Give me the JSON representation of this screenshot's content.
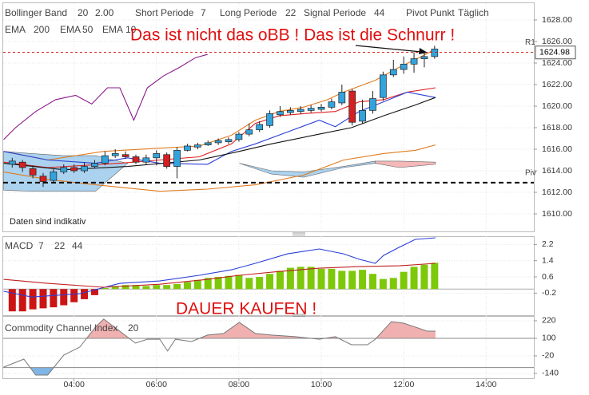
{
  "chart_data": [
    {
      "type": "candlestick",
      "legend": [
        {
          "label": "Bollinger Band",
          "params": [
            20,
            "2.00"
          ],
          "color": "#e08a1e"
        },
        {
          "label": "Short Periode",
          "params": [
            7
          ],
          "color": "#555555"
        },
        {
          "label": "Long Periode",
          "params": [
            22
          ],
          "color": "#555555"
        },
        {
          "label": "Signal Periode",
          "params": [
            44
          ],
          "color": "#555555"
        },
        {
          "label": "Pivot Punkt",
          "params": [
            "Täglich"
          ],
          "color": "#555555"
        },
        {
          "label": "EMA",
          "params": [
            200
          ],
          "color": "#8b1a8b"
        },
        {
          "label": "EMA",
          "params": [
            50
          ],
          "color": "#2a3fd6"
        },
        {
          "label": "EMA",
          "params": [
            10
          ],
          "color": "#222222"
        }
      ],
      "annotation": "Das ist nicht das oBB ! Das ist die Schnurr !",
      "note": "Daten sind indikativ",
      "x": [
        2.5,
        2.75,
        3,
        3.25,
        3.5,
        3.75,
        4,
        4.25,
        4.5,
        4.75,
        5,
        5.25,
        5.5,
        5.75,
        6,
        6.25,
        6.5,
        6.75,
        7,
        7.25,
        7.5,
        7.75,
        8,
        8.25,
        8.5,
        8.75,
        9,
        9.25,
        9.5,
        9.75,
        10,
        10.25,
        10.5,
        10.75,
        11,
        11.25,
        11.5,
        11.75,
        12,
        12.25,
        12.5,
        12.75
      ],
      "open": [
        1614.6,
        1614.8,
        1614.2,
        1613.5,
        1613.1,
        1613.9,
        1614.3,
        1614.0,
        1614.4,
        1614.7,
        1615.4,
        1615.5,
        1615.3,
        1614.8,
        1615.2,
        1615.5,
        1614.4,
        1615.9,
        1616.2,
        1616.4,
        1616.6,
        1616.7,
        1616.9,
        1617.4,
        1617.8,
        1618.2,
        1619.2,
        1619.4,
        1619.5,
        1619.6,
        1619.7,
        1619.9,
        1620.3,
        1621.4,
        1618.6,
        1619.6,
        1620.8,
        1622.9,
        1623.4,
        1623.9,
        1624.4,
        1624.6
      ],
      "high": [
        1615.2,
        1615.0,
        1614.5,
        1613.8,
        1614.2,
        1614.6,
        1614.6,
        1614.8,
        1615.0,
        1615.8,
        1616.0,
        1615.8,
        1615.5,
        1615.5,
        1615.9,
        1615.7,
        1616.2,
        1616.5,
        1616.6,
        1616.8,
        1617.0,
        1617.1,
        1617.6,
        1618.4,
        1618.6,
        1619.6,
        1620.0,
        1619.9,
        1620.0,
        1620.1,
        1620.2,
        1620.7,
        1622.0,
        1621.6,
        1620.6,
        1621.4,
        1623.2,
        1624.3,
        1624.6,
        1625.0,
        1625.1,
        1625.6
      ],
      "low": [
        1614.3,
        1613.9,
        1613.3,
        1612.5,
        1612.9,
        1613.7,
        1613.8,
        1613.8,
        1614.2,
        1614.5,
        1615.2,
        1615.1,
        1614.6,
        1614.6,
        1614.5,
        1614.2,
        1613.3,
        1615.8,
        1616.0,
        1616.3,
        1616.4,
        1616.5,
        1616.7,
        1617.2,
        1617.6,
        1618.0,
        1619.0,
        1619.2,
        1619.3,
        1619.4,
        1619.5,
        1619.7,
        1620.1,
        1618.2,
        1618.4,
        1619.3,
        1620.5,
        1622.7,
        1623.0,
        1623.1,
        1623.6,
        1624.4
      ],
      "close": [
        1614.9,
        1614.3,
        1613.6,
        1613.0,
        1613.9,
        1614.3,
        1614.0,
        1614.4,
        1614.7,
        1615.4,
        1615.6,
        1615.3,
        1614.8,
        1615.2,
        1615.6,
        1614.4,
        1615.9,
        1616.3,
        1616.4,
        1616.6,
        1616.8,
        1616.9,
        1617.4,
        1617.8,
        1618.3,
        1619.3,
        1619.5,
        1619.6,
        1619.7,
        1619.8,
        1619.9,
        1620.4,
        1621.3,
        1618.5,
        1619.6,
        1620.7,
        1622.9,
        1623.4,
        1623.9,
        1624.4,
        1624.6,
        1625.3
      ],
      "up_color": "#33a3dc",
      "down_color": "#d42020",
      "clouds": [
        {
          "color": "#8fc3e8",
          "x": [
            2.29,
            2.97,
            3.75,
            4.52,
            5.3
          ],
          "upper": [
            1615.8,
            1615.6,
            1615.4,
            1615.4,
            1614.7
          ],
          "lower": [
            1612.2,
            1612.1,
            1612.1,
            1612.1,
            1614.7
          ]
        },
        {
          "color": "#8fc3e8",
          "x": [
            8.01,
            8.79,
            9.57,
            10.54,
            11.31
          ],
          "upper": [
            1614.7,
            1614.0,
            1613.9,
            1614.4,
            1614.9
          ],
          "lower": [
            1614.7,
            1613.7,
            1613.4,
            1614.3,
            1614.7
          ]
        },
        {
          "color": "#f0a0a0",
          "x": [
            11.31,
            11.89,
            12.77
          ],
          "upper": [
            1614.9,
            1614.9,
            1614.8
          ],
          "lower": [
            1614.7,
            1614.3,
            1614.6
          ]
        }
      ],
      "lines": [
        {
          "color": "#8b1a8b",
          "x": [
            2.29,
            2.58,
            3.07,
            3.55,
            4.04,
            4.43,
            4.81,
            5.11,
            5.45,
            5.78,
            6.17,
            6.56,
            6.95,
            7.24
          ],
          "values": [
            1616.9,
            1618.0,
            1619.5,
            1620.6,
            1621.0,
            1620.2,
            1621.7,
            1621.7,
            1618.7,
            1621.7,
            1622.8,
            1623.6,
            1624.5,
            1624.8
          ]
        },
        {
          "color": "#e07b20",
          "x": [
            2.29,
            3.36,
            4.72,
            6.08,
            7.04,
            7.82,
            8.4,
            8.98,
            9.57,
            10.15,
            10.54,
            11.31,
            11.89,
            12.48,
            12.77
          ],
          "values": [
            1615.8,
            1615.0,
            1615.8,
            1616.1,
            1616.3,
            1617.3,
            1618.7,
            1619.5,
            1619.9,
            1620.6,
            1621.3,
            1622.4,
            1623.6,
            1624.7,
            1625.3
          ]
        },
        {
          "color": "#e07b20",
          "x": [
            2.29,
            3.36,
            4.52,
            6.08,
            7.24,
            8.4,
            9.57,
            10.54,
            11.51,
            12.28,
            12.77
          ],
          "values": [
            1613.9,
            1613.2,
            1612.7,
            1612.1,
            1612.3,
            1612.7,
            1613.6,
            1615.0,
            1615.6,
            1615.9,
            1616.4
          ]
        },
        {
          "color": "#e02020",
          "x": [
            2.29,
            3.36,
            5.11,
            6.08,
            7.04,
            7.82,
            8.4,
            8.98,
            9.57,
            10.34,
            10.92,
            11.51,
            12.09,
            12.77
          ],
          "values": [
            1614.8,
            1614.3,
            1614.7,
            1615.0,
            1615.3,
            1616.5,
            1618.4,
            1619.1,
            1619.3,
            1619.5,
            1620.4,
            1620.6,
            1621.3,
            1621.7
          ]
        },
        {
          "color": "#2a3fd6",
          "x": [
            2.29,
            3.36,
            4.52,
            5.3,
            6.08,
            7.24,
            7.82,
            8.4,
            9.18,
            9.95,
            10.34,
            10.92,
            11.51,
            12.09,
            12.77
          ],
          "values": [
            1615.8,
            1615.0,
            1614.7,
            1615.2,
            1614.7,
            1614.6,
            1615.8,
            1616.5,
            1617.6,
            1618.7,
            1618.1,
            1619.5,
            1620.4,
            1621.3,
            1620.8
          ]
        },
        {
          "color": "#111111",
          "x": [
            2.29,
            3.75,
            5.3,
            7.04,
            8.01,
            8.79,
            9.95,
            10.73,
            11.51,
            12.28,
            12.77
          ],
          "values": [
            1614.7,
            1614.1,
            1614.4,
            1615.0,
            1615.8,
            1616.5,
            1617.4,
            1618.0,
            1619.1,
            1620.1,
            1620.8
          ]
        }
      ],
      "ref_lines": [
        {
          "label": "Piv",
          "value": 1612.9,
          "color": "#000000"
        },
        {
          "label": "R1",
          "value": 1625.0,
          "color": "#d42020"
        }
      ],
      "last_price": 1624.98,
      "xlim": [
        2.3,
        15.1
      ],
      "ylim": [
        1608.52,
        1629.48
      ],
      "yticks": [
        {
          "value": 1628,
          "label": "1628.00"
        },
        {
          "value": 1626,
          "label": "1626.00"
        },
        {
          "value": 1624,
          "label": "1624.00"
        },
        {
          "value": 1622,
          "label": "1622.00"
        },
        {
          "value": 1620,
          "label": "1620.00"
        },
        {
          "value": 1618,
          "label": "1618.00"
        },
        {
          "value": 1616,
          "label": "1616.00"
        },
        {
          "value": 1614,
          "label": "1614.00"
        },
        {
          "value": 1612,
          "label": "1612.00"
        },
        {
          "value": 1610,
          "label": "1610.00"
        }
      ],
      "grid": true
    },
    {
      "type": "bar",
      "title": "MACD",
      "params": [
        7,
        22,
        44
      ],
      "params_color": "#cc1414",
      "annotation": "DAUER KAUFEN !",
      "x": [
        2.5,
        2.75,
        3,
        3.25,
        3.5,
        3.75,
        4,
        4.25,
        4.5,
        4.75,
        5,
        5.25,
        5.5,
        5.75,
        6,
        6.25,
        6.5,
        6.75,
        7,
        7.25,
        7.5,
        7.75,
        8,
        8.25,
        8.5,
        8.75,
        9,
        9.25,
        9.5,
        9.75,
        10,
        10.25,
        10.5,
        10.75,
        11,
        11.25,
        11.5,
        11.75,
        12,
        12.25,
        12.5,
        12.75
      ],
      "values": [
        -1.1,
        -1.1,
        -1.0,
        -0.95,
        -0.9,
        -0.8,
        -0.65,
        -0.5,
        -0.3,
        0.05,
        0.15,
        0.2,
        0.2,
        0.15,
        0.2,
        0.2,
        0.25,
        0.35,
        0.45,
        0.55,
        0.6,
        0.65,
        0.7,
        0.55,
        0.6,
        0.75,
        0.9,
        1.05,
        1.1,
        1.1,
        1.0,
        1.0,
        0.9,
        0.9,
        0.95,
        0.75,
        0.5,
        0.55,
        0.85,
        1.1,
        1.2,
        1.3
      ],
      "up_color": "#7ec80a",
      "down_color": "#cc1414",
      "lines": [
        {
          "color": "#2a3fd6",
          "x": [
            2.29,
            2.97,
            4.14,
            5.11,
            6.08,
            7.04,
            7.82,
            8.4,
            9.18,
            9.95,
            10.54,
            10.92,
            11.31,
            11.51,
            11.89,
            12.28,
            12.77
          ],
          "values": [
            -0.11,
            -0.39,
            -0.23,
            0.28,
            0.4,
            0.68,
            0.95,
            1.27,
            1.74,
            1.98,
            1.74,
            1.47,
            1.27,
            1.66,
            2.06,
            2.45,
            2.53
          ]
        },
        {
          "color": "#c02020",
          "x": [
            2.29,
            3.36,
            4.72,
            6.08,
            7.24,
            8.01,
            8.98,
            9.95,
            10.92,
            11.89,
            12.77
          ],
          "values": [
            0.48,
            0.28,
            0.09,
            0.24,
            0.48,
            0.68,
            0.87,
            1.03,
            1.11,
            1.15,
            1.27
          ]
        }
      ],
      "xlim": [
        2.3,
        15.1
      ],
      "ylim": [
        -1.29,
        2.57
      ],
      "yticks": [
        2.2,
        1.4,
        0.6,
        -0.2
      ],
      "grid": true
    },
    {
      "type": "line",
      "title": "Commodity Channel Index",
      "params": [
        20
      ],
      "x": [
        2.29,
        2.78,
        3.07,
        3.36,
        3.75,
        4.14,
        4.52,
        4.72,
        5.11,
        5.49,
        5.78,
        6.08,
        6.27,
        6.46,
        6.85,
        7.24,
        7.63,
        8.01,
        8.4,
        8.79,
        9.37,
        9.95,
        10.34,
        10.73,
        11.12,
        11.31,
        11.7,
        11.99,
        12.28,
        12.57,
        12.77
      ],
      "values": [
        -97,
        -42,
        -151,
        -151,
        -15,
        40,
        177,
        231,
        149,
        67,
        94,
        94,
        13,
        94,
        78,
        122,
        133,
        209,
        133,
        122,
        111,
        94,
        111,
        56,
        56,
        94,
        214,
        204,
        177,
        149,
        149
      ],
      "color": "#777777",
      "levels": [
        100,
        -100
      ],
      "above_color": "#f0b0b0",
      "below_color": "#7fb6e6",
      "xlim": [
        2.3,
        15.1
      ],
      "ylim": [
        -173,
        247
      ],
      "yticks": [
        220,
        100,
        -20,
        -140
      ],
      "xticks": [
        {
          "value": 4,
          "label": "04:00"
        },
        {
          "value": 6,
          "label": "06:00"
        },
        {
          "value": 8,
          "label": "08:00"
        },
        {
          "value": 10,
          "label": "10:00"
        },
        {
          "value": 12,
          "label": "12:00"
        },
        {
          "value": 14,
          "label": "14:00"
        }
      ],
      "grid": true
    }
  ]
}
